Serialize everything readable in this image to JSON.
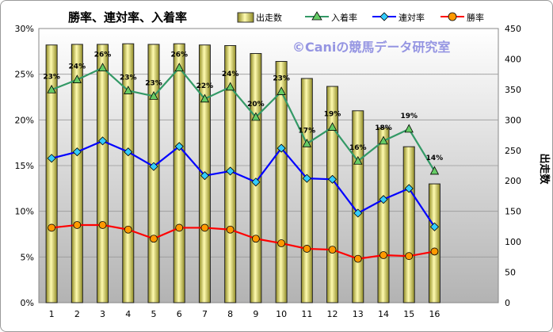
{
  "chart_data": {
    "type": "bar+line",
    "title": "勝率、連対率、入着率",
    "watermark": "©Caniの競馬データ研究室",
    "categories": [
      "1",
      "2",
      "3",
      "4",
      "5",
      "6",
      "7",
      "8",
      "9",
      "10",
      "11",
      "12",
      "13",
      "14",
      "15",
      "16"
    ],
    "bar_series": {
      "name": "出走数",
      "values": [
        423,
        424,
        424,
        425,
        424,
        425,
        423,
        422,
        409,
        396,
        368,
        355,
        315,
        287,
        256,
        195
      ],
      "color": "#f5ee8a"
    },
    "series": [
      {
        "name": "入着率",
        "values": [
          23.3,
          24.4,
          25.7,
          23.2,
          22.6,
          25.7,
          22.3,
          23.6,
          20.3,
          23.1,
          17.4,
          19.2,
          15.5,
          17.7,
          19.0,
          14.4
        ],
        "labels": [
          "23%",
          "24%",
          "26%",
          "23%",
          "23%",
          "26%",
          "22%",
          "24%",
          "20%",
          "23%",
          "17%",
          "19%",
          "16%",
          "18%",
          "19%",
          "14%"
        ],
        "color": "#339966",
        "marker": "triangle"
      },
      {
        "name": "連対率",
        "values": [
          15.8,
          16.5,
          17.7,
          16.5,
          14.9,
          17.1,
          13.9,
          14.4,
          13.2,
          16.9,
          13.6,
          13.5,
          9.8,
          11.3,
          12.5,
          8.3
        ],
        "color": "#0000ff",
        "marker": "diamond"
      },
      {
        "name": "勝率",
        "values": [
          8.2,
          8.5,
          8.5,
          8.0,
          7.0,
          8.2,
          8.2,
          8.0,
          7.0,
          6.5,
          5.9,
          5.8,
          4.8,
          5.2,
          5.1,
          5.6
        ],
        "color": "#ff0000",
        "marker": "circle"
      }
    ],
    "y_left": {
      "ticks": [
        "0%",
        "5%",
        "10%",
        "15%",
        "20%",
        "25%",
        "30%"
      ],
      "ylim": [
        0,
        30
      ]
    },
    "y_right": {
      "label": "出走数",
      "ticks": [
        "0",
        "50",
        "100",
        "150",
        "200",
        "250",
        "300",
        "350",
        "400",
        "450"
      ],
      "ylim": [
        0,
        450
      ]
    },
    "legend_position": "top",
    "grid": true
  }
}
